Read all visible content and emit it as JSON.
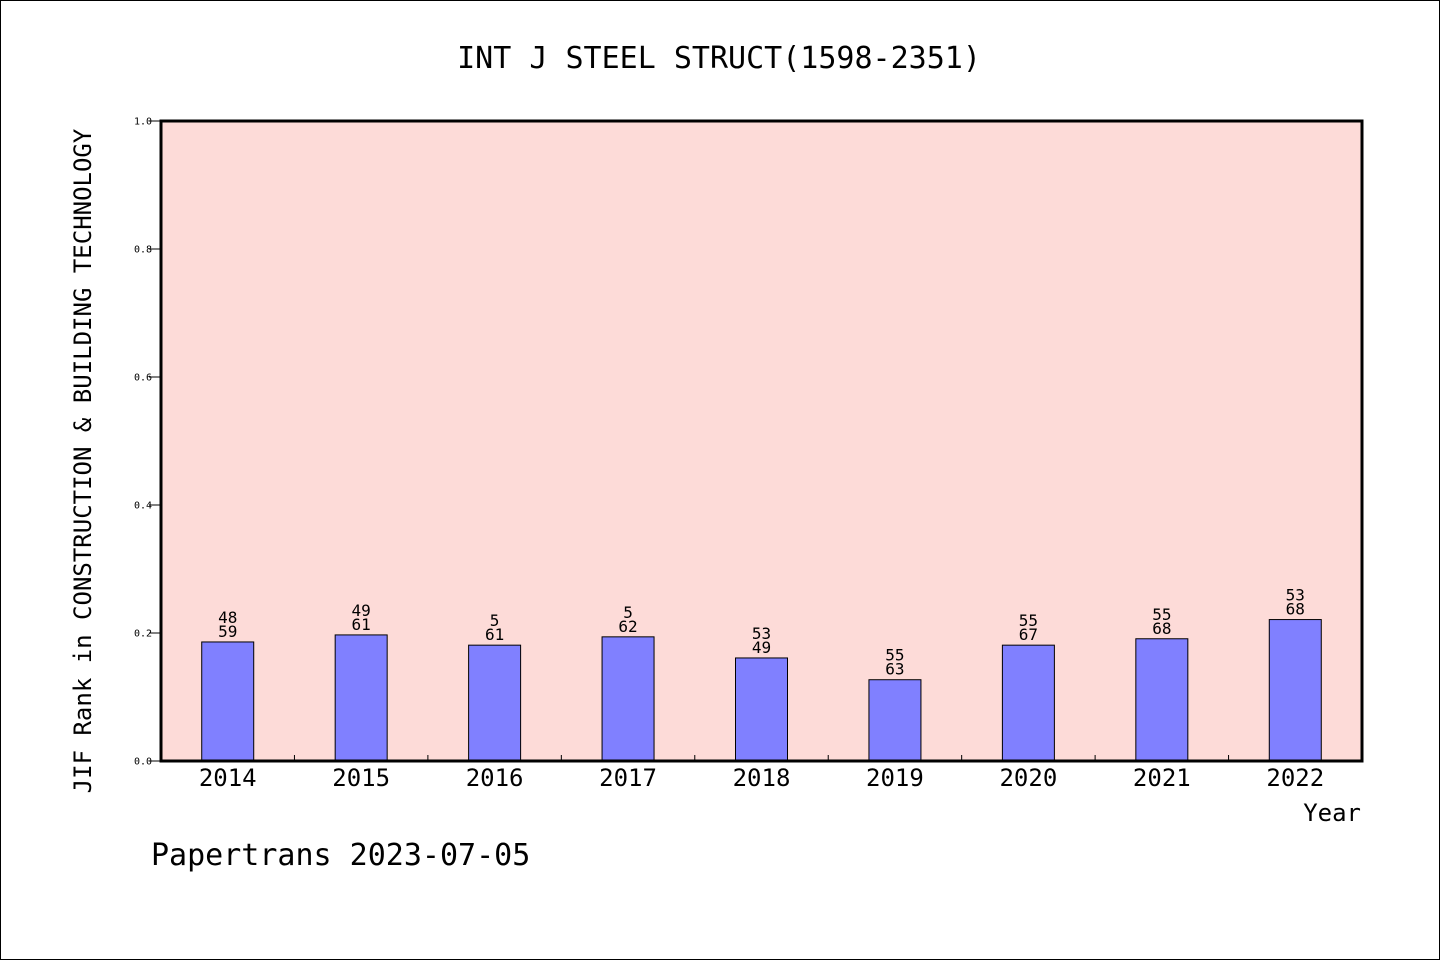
{
  "chart_data": {
    "type": "bar",
    "title": "INT J STEEL STRUCT(1598-2351)",
    "xlabel": "Year",
    "ylabel": "JIF Rank in CONSTRUCTION & BUILDING TECHNOLOGY",
    "ylim": [
      0,
      1.0
    ],
    "yticks": [
      "0.0",
      "0.2",
      "0.4",
      "0.6",
      "0.8",
      "1.0"
    ],
    "categories": [
      "2014",
      "2015",
      "2016",
      "2017",
      "2018",
      "2019",
      "2020",
      "2021",
      "2022"
    ],
    "values": [
      0.186,
      0.197,
      0.181,
      0.194,
      0.161,
      0.127,
      0.181,
      0.191,
      0.221
    ],
    "labels_top": [
      "48",
      "49",
      "5",
      "5",
      "53",
      "55",
      "55",
      "55",
      "53"
    ],
    "labels_bottom": [
      "59",
      "61",
      "61",
      "62",
      "49",
      "63",
      "67",
      "68",
      "68"
    ],
    "grid": false,
    "colors": {
      "plot_bg": "#fddbd8",
      "bar": "#8080ff",
      "bar_edge": "#000000"
    }
  },
  "footer": {
    "text": "Papertrans 2023-07-05"
  }
}
